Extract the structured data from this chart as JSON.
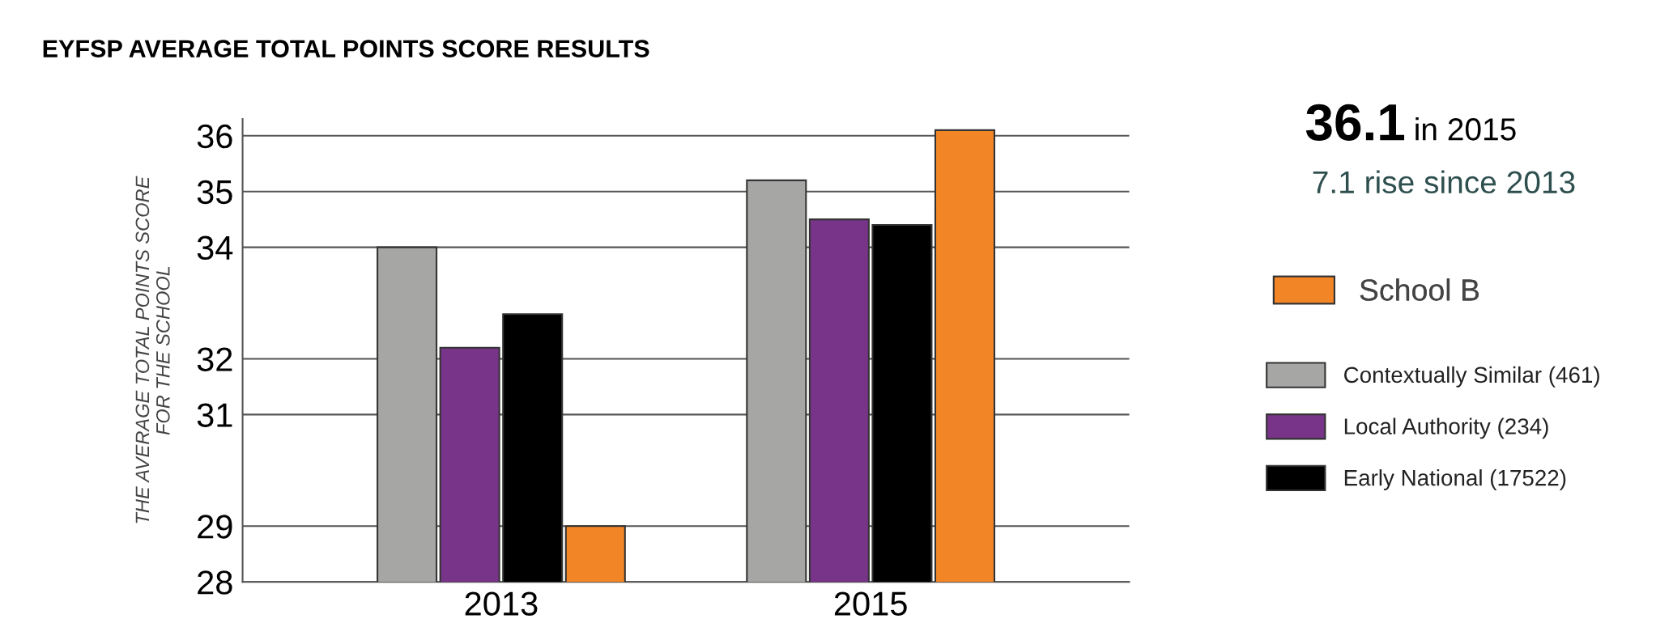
{
  "chart_data": {
    "type": "bar",
    "title": "EYFSP AVERAGE TOTAL POINTS SCORE RESULTS",
    "ylabel": "THE AVERAGE TOTAL POINTS SCORE\nFOR THE SCHOOL",
    "categories": [
      "2013",
      "2015"
    ],
    "series": [
      {
        "name": "Contextually Similar (461)",
        "color": "#a6a6a4",
        "values": [
          34.0,
          35.2
        ]
      },
      {
        "name": "Local Authority (234)",
        "color": "#773489",
        "values": [
          32.2,
          34.5
        ]
      },
      {
        "name": "Early National (17522)",
        "color": "#000000",
        "values": [
          32.8,
          34.4
        ]
      },
      {
        "name": "School B",
        "color": "#f28627",
        "values": [
          29.0,
          36.1
        ]
      }
    ],
    "ylim": [
      28,
      36.3
    ],
    "yticks": [
      28,
      29,
      31,
      32,
      34,
      35,
      36
    ],
    "grid": "y",
    "legend": "right",
    "annotations": [
      "36.1",
      "in 2015",
      "7.1 rise since 2013"
    ]
  }
}
